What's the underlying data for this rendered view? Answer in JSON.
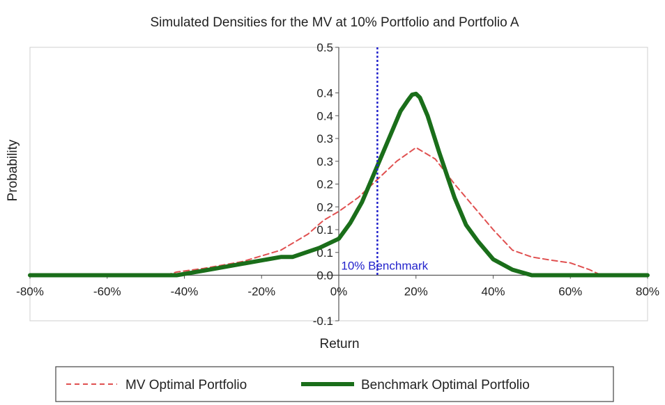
{
  "chart_data": {
    "type": "line",
    "title": "Simulated Densities for the MV at 10% Portfolio and Portfolio A",
    "xlabel": "Return",
    "ylabel": "Probability",
    "xlim": [
      -0.8,
      0.8
    ],
    "ylim": [
      -0.1,
      0.5
    ],
    "x_ticks": [
      -0.8,
      -0.6,
      -0.4,
      -0.2,
      0.0,
      0.2,
      0.4,
      0.6,
      0.8
    ],
    "x_tick_labels": [
      "-80%",
      "-60%",
      "-40%",
      "-20%",
      "0%",
      "20%",
      "40%",
      "60%",
      "80%"
    ],
    "y_ticks": [
      -0.1,
      0.0,
      0.05,
      0.1,
      0.15,
      0.2,
      0.25,
      0.3,
      0.35,
      0.4,
      0.5
    ],
    "y_tick_labels": [
      "-0.1",
      "0.0",
      "0.1",
      "0.1",
      "0.2",
      "0.2",
      "0.3",
      "0.3",
      "0.4",
      "0.4",
      "0.5"
    ],
    "grid": false,
    "legend_position": "bottom",
    "benchmark": {
      "x": 0.1,
      "label": "10% Benchmark",
      "color": "#2222cc"
    },
    "series": [
      {
        "name": "MV Optimal Portfolio",
        "color": "#e05050",
        "style": "dashed",
        "x": [
          -0.8,
          -0.45,
          -0.42,
          -0.35,
          -0.25,
          -0.15,
          -0.08,
          -0.04,
          0.0,
          0.05,
          0.1,
          0.15,
          0.2,
          0.25,
          0.3,
          0.35,
          0.4,
          0.45,
          0.5,
          0.55,
          0.6,
          0.65,
          0.68,
          0.8
        ],
        "y": [
          0.0,
          0.0,
          0.007,
          0.015,
          0.03,
          0.055,
          0.09,
          0.12,
          0.14,
          0.17,
          0.21,
          0.25,
          0.28,
          0.255,
          0.2,
          0.15,
          0.1,
          0.055,
          0.04,
          0.033,
          0.027,
          0.012,
          0.0,
          0.0
        ]
      },
      {
        "name": "Benchmark Optimal Portfolio",
        "color": "#1a6e1a",
        "style": "solid",
        "x": [
          -0.8,
          -0.42,
          -0.35,
          -0.25,
          -0.15,
          -0.12,
          -0.05,
          0.0,
          0.03,
          0.06,
          0.1,
          0.13,
          0.16,
          0.18,
          0.19,
          0.2,
          0.21,
          0.23,
          0.26,
          0.3,
          0.33,
          0.36,
          0.4,
          0.45,
          0.5,
          0.8
        ],
        "y": [
          0.0,
          0.0,
          0.01,
          0.025,
          0.04,
          0.04,
          0.06,
          0.08,
          0.115,
          0.16,
          0.24,
          0.3,
          0.36,
          0.385,
          0.396,
          0.398,
          0.39,
          0.35,
          0.27,
          0.17,
          0.11,
          0.075,
          0.035,
          0.012,
          0.0,
          0.0
        ]
      }
    ]
  }
}
